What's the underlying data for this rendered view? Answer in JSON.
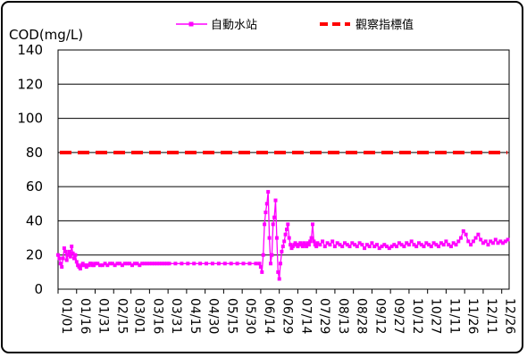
{
  "chart_data": {
    "type": "line",
    "ylabel": "COD(mg/L)",
    "ylim": [
      0,
      140
    ],
    "yticks": [
      0,
      20,
      40,
      60,
      80,
      100,
      120,
      140
    ],
    "x_tick_labels": [
      "01/01",
      "01/16",
      "01/31",
      "02/15",
      "03/01",
      "03/16",
      "03/31",
      "04/15",
      "04/30",
      "05/15",
      "05/30",
      "06/14",
      "06/29",
      "07/14",
      "07/29",
      "08/13",
      "08/28",
      "09/12",
      "09/27",
      "10/12",
      "10/27",
      "11/11",
      "11/26",
      "12/11",
      "12/26"
    ],
    "x_tick_days": [
      0,
      15,
      30,
      45,
      59,
      74,
      89,
      104,
      119,
      134,
      149,
      164,
      179,
      194,
      209,
      224,
      239,
      254,
      269,
      284,
      299,
      314,
      329,
      344,
      359
    ],
    "xlim_days": [
      0,
      365
    ],
    "grid": "horizontal",
    "legend_position": "top",
    "series": [
      {
        "name": "自動水站",
        "color": "#ff00ff",
        "marker": "square",
        "points": [
          [
            0,
            20
          ],
          [
            1,
            18
          ],
          [
            2,
            15
          ],
          [
            3,
            13
          ],
          [
            4,
            18
          ],
          [
            5,
            24
          ],
          [
            6,
            22
          ],
          [
            7,
            17
          ],
          [
            8,
            20
          ],
          [
            9,
            22
          ],
          [
            10,
            19
          ],
          [
            11,
            25
          ],
          [
            12,
            21
          ],
          [
            13,
            18
          ],
          [
            14,
            20
          ],
          [
            15,
            16
          ],
          [
            16,
            14
          ],
          [
            17,
            13
          ],
          [
            18,
            12
          ],
          [
            19,
            14
          ],
          [
            20,
            15
          ],
          [
            21,
            14
          ],
          [
            22,
            14
          ],
          [
            23,
            13
          ],
          [
            24,
            14
          ],
          [
            25,
            14
          ],
          [
            26,
            15
          ],
          [
            27,
            15
          ],
          [
            28,
            14
          ],
          [
            29,
            14
          ],
          [
            30,
            15
          ],
          [
            32,
            15
          ],
          [
            34,
            14
          ],
          [
            36,
            14
          ],
          [
            38,
            15
          ],
          [
            40,
            14
          ],
          [
            42,
            15
          ],
          [
            44,
            15
          ],
          [
            46,
            14
          ],
          [
            48,
            15
          ],
          [
            50,
            15
          ],
          [
            52,
            14
          ],
          [
            54,
            15
          ],
          [
            56,
            15
          ],
          [
            58,
            15
          ],
          [
            60,
            14
          ],
          [
            62,
            15
          ],
          [
            64,
            15
          ],
          [
            66,
            14
          ],
          [
            68,
            15
          ],
          [
            70,
            15
          ],
          [
            72,
            15
          ],
          [
            74,
            15
          ],
          [
            76,
            15
          ],
          [
            78,
            15
          ],
          [
            80,
            15
          ],
          [
            82,
            15
          ],
          [
            84,
            15
          ],
          [
            86,
            15
          ],
          [
            88,
            15
          ],
          [
            90,
            15
          ],
          [
            95,
            15
          ],
          [
            100,
            15
          ],
          [
            105,
            15
          ],
          [
            110,
            15
          ],
          [
            115,
            15
          ],
          [
            120,
            15
          ],
          [
            125,
            15
          ],
          [
            130,
            15
          ],
          [
            135,
            15
          ],
          [
            140,
            15
          ],
          [
            145,
            15
          ],
          [
            150,
            15
          ],
          [
            155,
            15
          ],
          [
            160,
            15
          ],
          [
            163,
            15
          ],
          [
            164,
            13
          ],
          [
            165,
            10
          ],
          [
            166,
            20
          ],
          [
            167,
            38
          ],
          [
            168,
            45
          ],
          [
            169,
            50
          ],
          [
            170,
            57
          ],
          [
            171,
            30
          ],
          [
            172,
            15
          ],
          [
            173,
            20
          ],
          [
            174,
            38
          ],
          [
            175,
            42
          ],
          [
            176,
            52
          ],
          [
            177,
            30
          ],
          [
            178,
            10
          ],
          [
            179,
            6
          ],
          [
            180,
            15
          ],
          [
            181,
            22
          ],
          [
            182,
            25
          ],
          [
            183,
            28
          ],
          [
            184,
            32
          ],
          [
            185,
            35
          ],
          [
            186,
            38
          ],
          [
            187,
            30
          ],
          [
            188,
            26
          ],
          [
            189,
            24
          ],
          [
            190,
            25
          ],
          [
            191,
            26
          ],
          [
            192,
            27
          ],
          [
            193,
            26
          ],
          [
            194,
            25
          ],
          [
            195,
            26
          ],
          [
            196,
            27
          ],
          [
            197,
            26
          ],
          [
            198,
            25
          ],
          [
            199,
            27
          ],
          [
            200,
            26
          ],
          [
            201,
            25
          ],
          [
            202,
            27
          ],
          [
            203,
            26
          ],
          [
            204,
            28
          ],
          [
            205,
            30
          ],
          [
            206,
            38
          ],
          [
            207,
            28
          ],
          [
            208,
            26
          ],
          [
            209,
            25
          ],
          [
            210,
            27
          ],
          [
            212,
            26
          ],
          [
            214,
            28
          ],
          [
            216,
            25
          ],
          [
            218,
            27
          ],
          [
            220,
            26
          ],
          [
            222,
            28
          ],
          [
            224,
            25
          ],
          [
            226,
            27
          ],
          [
            228,
            26
          ],
          [
            230,
            25
          ],
          [
            232,
            27
          ],
          [
            234,
            26
          ],
          [
            236,
            25
          ],
          [
            238,
            27
          ],
          [
            240,
            26
          ],
          [
            242,
            25
          ],
          [
            244,
            27
          ],
          [
            246,
            26
          ],
          [
            248,
            24
          ],
          [
            250,
            26
          ],
          [
            252,
            25
          ],
          [
            254,
            27
          ],
          [
            256,
            25
          ],
          [
            258,
            26
          ],
          [
            260,
            24
          ],
          [
            262,
            25
          ],
          [
            264,
            26
          ],
          [
            266,
            25
          ],
          [
            268,
            24
          ],
          [
            270,
            25
          ],
          [
            272,
            26
          ],
          [
            274,
            25
          ],
          [
            276,
            27
          ],
          [
            278,
            26
          ],
          [
            280,
            25
          ],
          [
            282,
            27
          ],
          [
            284,
            26
          ],
          [
            286,
            28
          ],
          [
            288,
            26
          ],
          [
            290,
            25
          ],
          [
            292,
            27
          ],
          [
            294,
            26
          ],
          [
            296,
            25
          ],
          [
            298,
            27
          ],
          [
            300,
            26
          ],
          [
            302,
            25
          ],
          [
            304,
            27
          ],
          [
            306,
            26
          ],
          [
            308,
            25
          ],
          [
            310,
            27
          ],
          [
            312,
            26
          ],
          [
            314,
            28
          ],
          [
            316,
            26
          ],
          [
            318,
            25
          ],
          [
            320,
            27
          ],
          [
            322,
            26
          ],
          [
            324,
            28
          ],
          [
            326,
            30
          ],
          [
            328,
            34
          ],
          [
            330,
            32
          ],
          [
            332,
            28
          ],
          [
            334,
            26
          ],
          [
            336,
            28
          ],
          [
            338,
            30
          ],
          [
            340,
            32
          ],
          [
            342,
            29
          ],
          [
            344,
            27
          ],
          [
            346,
            28
          ],
          [
            348,
            26
          ],
          [
            350,
            28
          ],
          [
            352,
            27
          ],
          [
            354,
            29
          ],
          [
            356,
            27
          ],
          [
            358,
            28
          ],
          [
            360,
            27
          ],
          [
            362,
            28
          ],
          [
            364,
            29
          ]
        ]
      },
      {
        "name": "觀察指標值",
        "color": "#ff0000",
        "style": "dashed",
        "value": 80
      }
    ]
  }
}
